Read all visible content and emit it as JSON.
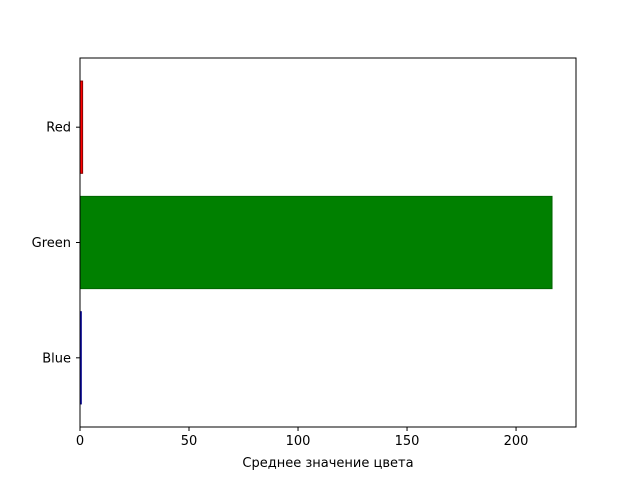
{
  "chart_data": {
    "type": "bar",
    "orientation": "horizontal",
    "title": "",
    "xlabel": "Среднее значение цвета",
    "ylabel": "",
    "categories": [
      "Red",
      "Green",
      "Blue"
    ],
    "values": [
      1.2,
      216.5,
      0.6
    ],
    "bar_colors": [
      "#ff0000",
      "#008000",
      "#0000ff"
    ],
    "edge_colors": [
      "#8b0000",
      "#006400",
      "#00008b"
    ],
    "xlim": [
      0,
      227.5
    ],
    "xticks": [
      0,
      50,
      100,
      150,
      200
    ],
    "grid": false,
    "legend": false
  }
}
